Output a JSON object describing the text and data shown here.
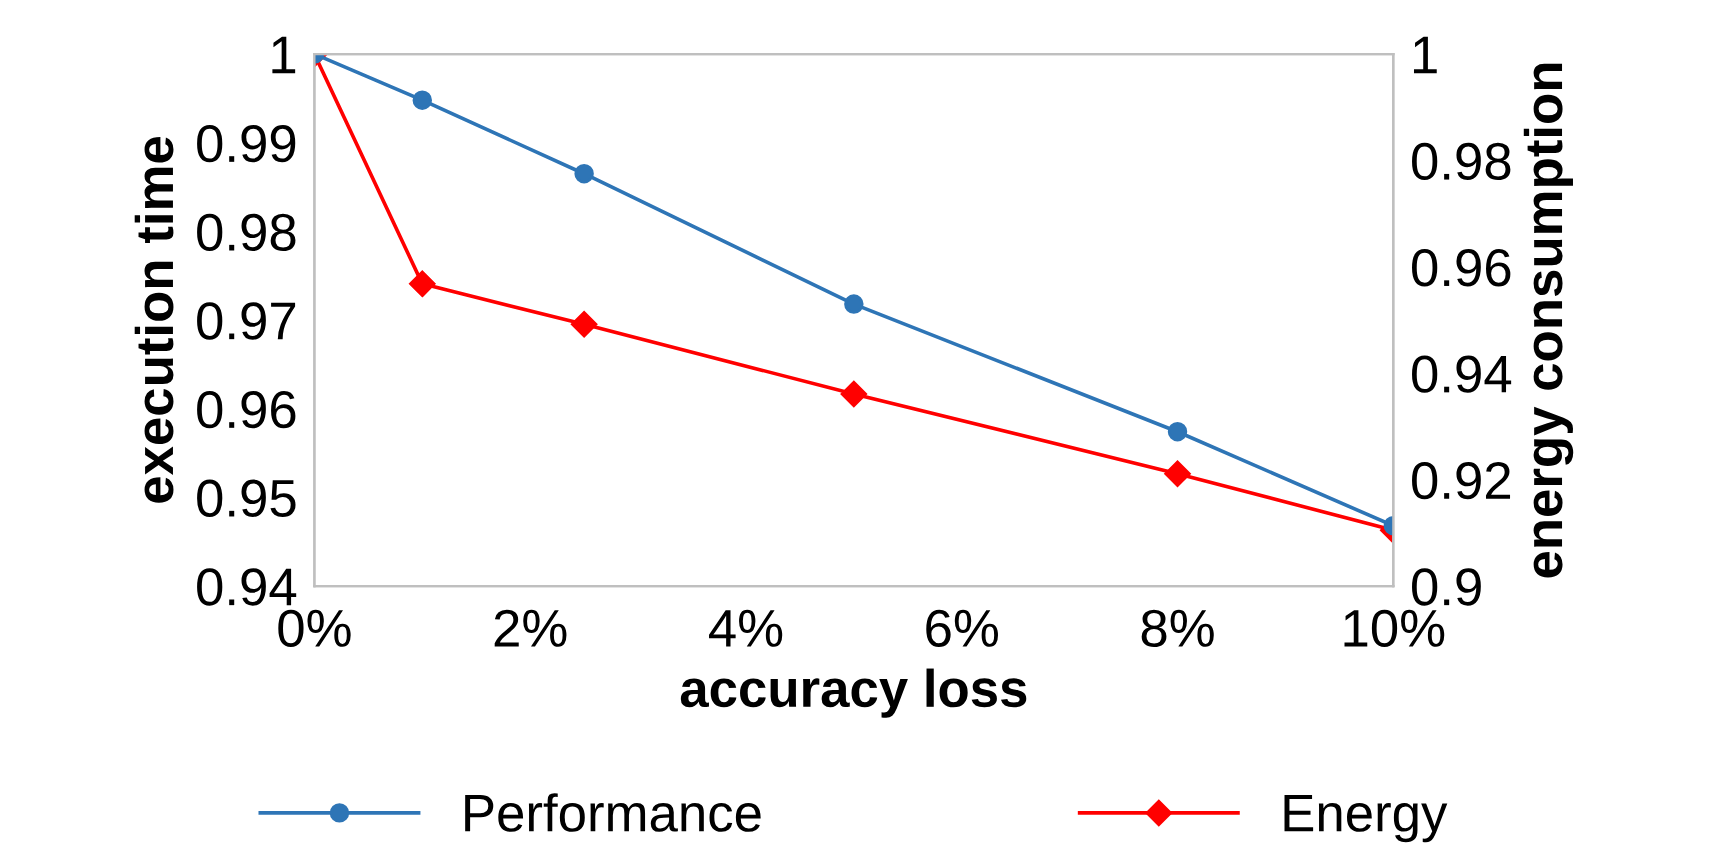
{
  "chart_data": {
    "type": "line",
    "xlabel": "accuracy loss",
    "ylabel": "execution time",
    "y2label": "energy consumption",
    "x": [
      0,
      1,
      2.5,
      5,
      8,
      10
    ],
    "xlim": [
      0,
      10
    ],
    "xticks": [
      {
        "value": 0,
        "label": "0%"
      },
      {
        "value": 2,
        "label": "2%"
      },
      {
        "value": 4,
        "label": "4%"
      },
      {
        "value": 6,
        "label": "6%"
      },
      {
        "value": 8,
        "label": "8%"
      },
      {
        "value": 10,
        "label": "10%"
      }
    ],
    "ylim": [
      0.94,
      1
    ],
    "yticks": [
      0.94,
      0.95,
      0.96,
      0.97,
      0.98,
      0.99,
      1
    ],
    "y2lim": [
      0.9,
      1
    ],
    "y2ticks": [
      0.9,
      0.92,
      0.94,
      0.96,
      0.98,
      1
    ],
    "series": [
      {
        "name": "Performance",
        "color": "#2e75b6",
        "marker": "circle",
        "values": [
          1,
          0.9948,
          0.9865,
          0.9718,
          0.9574,
          0.9468
        ]
      },
      {
        "name": "Energy",
        "color": "#ff0000",
        "marker": "diamond",
        "axis": "y2",
        "values": [
          1,
          0.9568,
          0.9492,
          0.9361,
          0.9211,
          0.9105
        ]
      }
    ],
    "grid": false,
    "legend": "bottom"
  }
}
